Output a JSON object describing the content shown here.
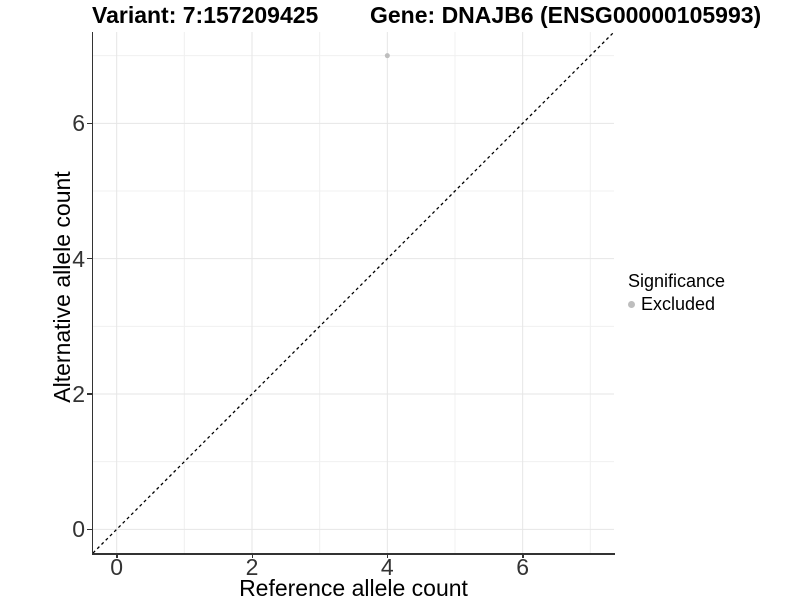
{
  "header": {
    "variant_title": "Variant: 7:157209425",
    "gene_title": "Gene: DNAJB6 (ENSG00000105993)"
  },
  "legend": {
    "title": "Significance",
    "items": [
      {
        "label": "Excluded",
        "color": "#bebebe",
        "marker": "circle-icon"
      }
    ]
  },
  "colors": {
    "background": "#ffffff",
    "axis_line": "#333333",
    "tick_label": "#333333",
    "grid_major": "#e6e6e6",
    "grid_minor": "#f0f0f0",
    "reference_line": "#000000",
    "excluded_point": "#bebebe"
  },
  "chart_data": {
    "type": "scatter",
    "title": "Variant: 7:157209425 | Gene: DNAJB6 (ENSG00000105993)",
    "xlabel": "Reference allele count",
    "ylabel": "Alternative allele count",
    "xlim": [
      -0.35,
      7.35
    ],
    "ylim": [
      -0.35,
      7.35
    ],
    "x_ticks": [
      0,
      2,
      4,
      6
    ],
    "y_ticks": [
      0,
      2,
      4,
      6
    ],
    "x_minor_ticks": [
      1,
      3,
      5,
      7
    ],
    "y_minor_ticks": [
      1,
      3,
      5,
      7
    ],
    "grid": "major and minor, light gray on white",
    "legend_position": "right",
    "series": [
      {
        "name": "Excluded",
        "color": "#bebebe",
        "marker": "circle",
        "marker_diameter_px": 5,
        "points": [
          [
            4,
            7
          ]
        ]
      }
    ],
    "reference_line": {
      "kind": "identity y=x",
      "style": "dashed",
      "color": "#000000",
      "from": [
        -0.35,
        -0.35
      ],
      "to": [
        7.35,
        7.35
      ]
    }
  }
}
